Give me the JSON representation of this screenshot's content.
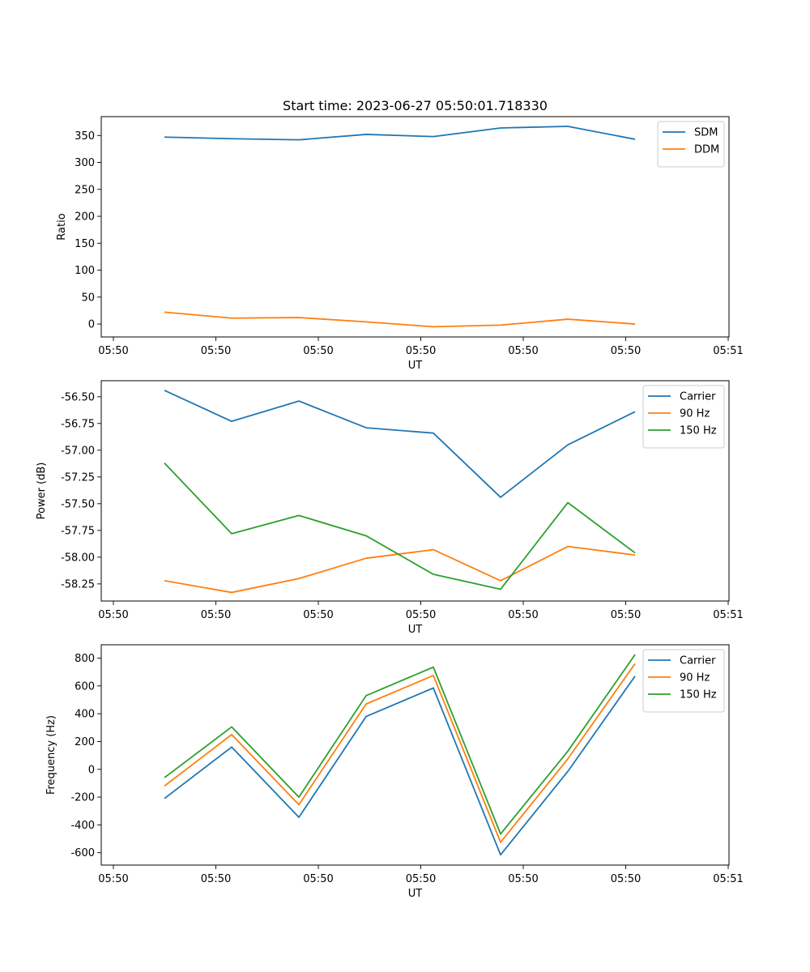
{
  "title": "Start time: 2023-06-27 05:50:01.718330",
  "chart_data": [
    {
      "type": "line",
      "xlabel": "UT",
      "ylabel": "Ratio",
      "xtick_labels": [
        "05:50",
        "05:50",
        "05:50",
        "05:50",
        "05:50",
        "05:50",
        "05:51"
      ],
      "ylim": [
        -24,
        385
      ],
      "yticks": [
        0,
        50,
        100,
        150,
        200,
        250,
        300,
        350
      ],
      "grid": false,
      "legend_position": "upper right",
      "series": [
        {
          "name": "SDM",
          "color": "#1f77b4",
          "values": [
            347,
            344,
            342,
            352,
            348,
            364,
            367,
            343
          ]
        },
        {
          "name": "DDM",
          "color": "#ff7f0e",
          "values": [
            22,
            11,
            12,
            4,
            -5,
            -2,
            9,
            0
          ]
        }
      ]
    },
    {
      "type": "line",
      "xlabel": "UT",
      "ylabel": "Power (dB)",
      "xtick_labels": [
        "05:50",
        "05:50",
        "05:50",
        "05:50",
        "05:50",
        "05:50",
        "05:51"
      ],
      "ylim": [
        -58.41,
        -56.35
      ],
      "yticks": [
        -58.25,
        -58.0,
        -57.75,
        -57.5,
        -57.25,
        -57.0,
        -56.75,
        -56.5
      ],
      "grid": false,
      "legend_position": "upper right",
      "series": [
        {
          "name": "Carrier",
          "color": "#1f77b4",
          "values": [
            -56.44,
            -56.73,
            -56.54,
            -56.79,
            -56.84,
            -57.44,
            -56.95,
            -56.64
          ]
        },
        {
          "name": "90 Hz",
          "color": "#ff7f0e",
          "values": [
            -58.22,
            -58.33,
            -58.2,
            -58.01,
            -57.93,
            -58.22,
            -57.9,
            -57.98
          ]
        },
        {
          "name": "150 Hz",
          "color": "#2ca02c",
          "values": [
            -57.12,
            -57.78,
            -57.61,
            -57.8,
            -58.16,
            -58.3,
            -57.49,
            -57.96
          ]
        }
      ]
    },
    {
      "type": "line",
      "xlabel": "UT",
      "ylabel": "Frequency (Hz)",
      "xtick_labels": [
        "05:50",
        "05:50",
        "05:50",
        "05:50",
        "05:50",
        "05:50",
        "05:51"
      ],
      "ylim": [
        -689,
        896
      ],
      "yticks": [
        -600,
        -400,
        -200,
        0,
        200,
        400,
        600,
        800
      ],
      "grid": false,
      "legend_position": "upper right",
      "series": [
        {
          "name": "Carrier",
          "color": "#1f77b4",
          "values": [
            -210,
            160,
            -345,
            380,
            585,
            -615,
            -15,
            670
          ]
        },
        {
          "name": "90 Hz",
          "color": "#ff7f0e",
          "values": [
            -120,
            250,
            -255,
            470,
            675,
            -525,
            75,
            760
          ]
        },
        {
          "name": "150 Hz",
          "color": "#2ca02c",
          "values": [
            -60,
            305,
            -200,
            530,
            735,
            -465,
            130,
            825
          ]
        }
      ]
    }
  ]
}
